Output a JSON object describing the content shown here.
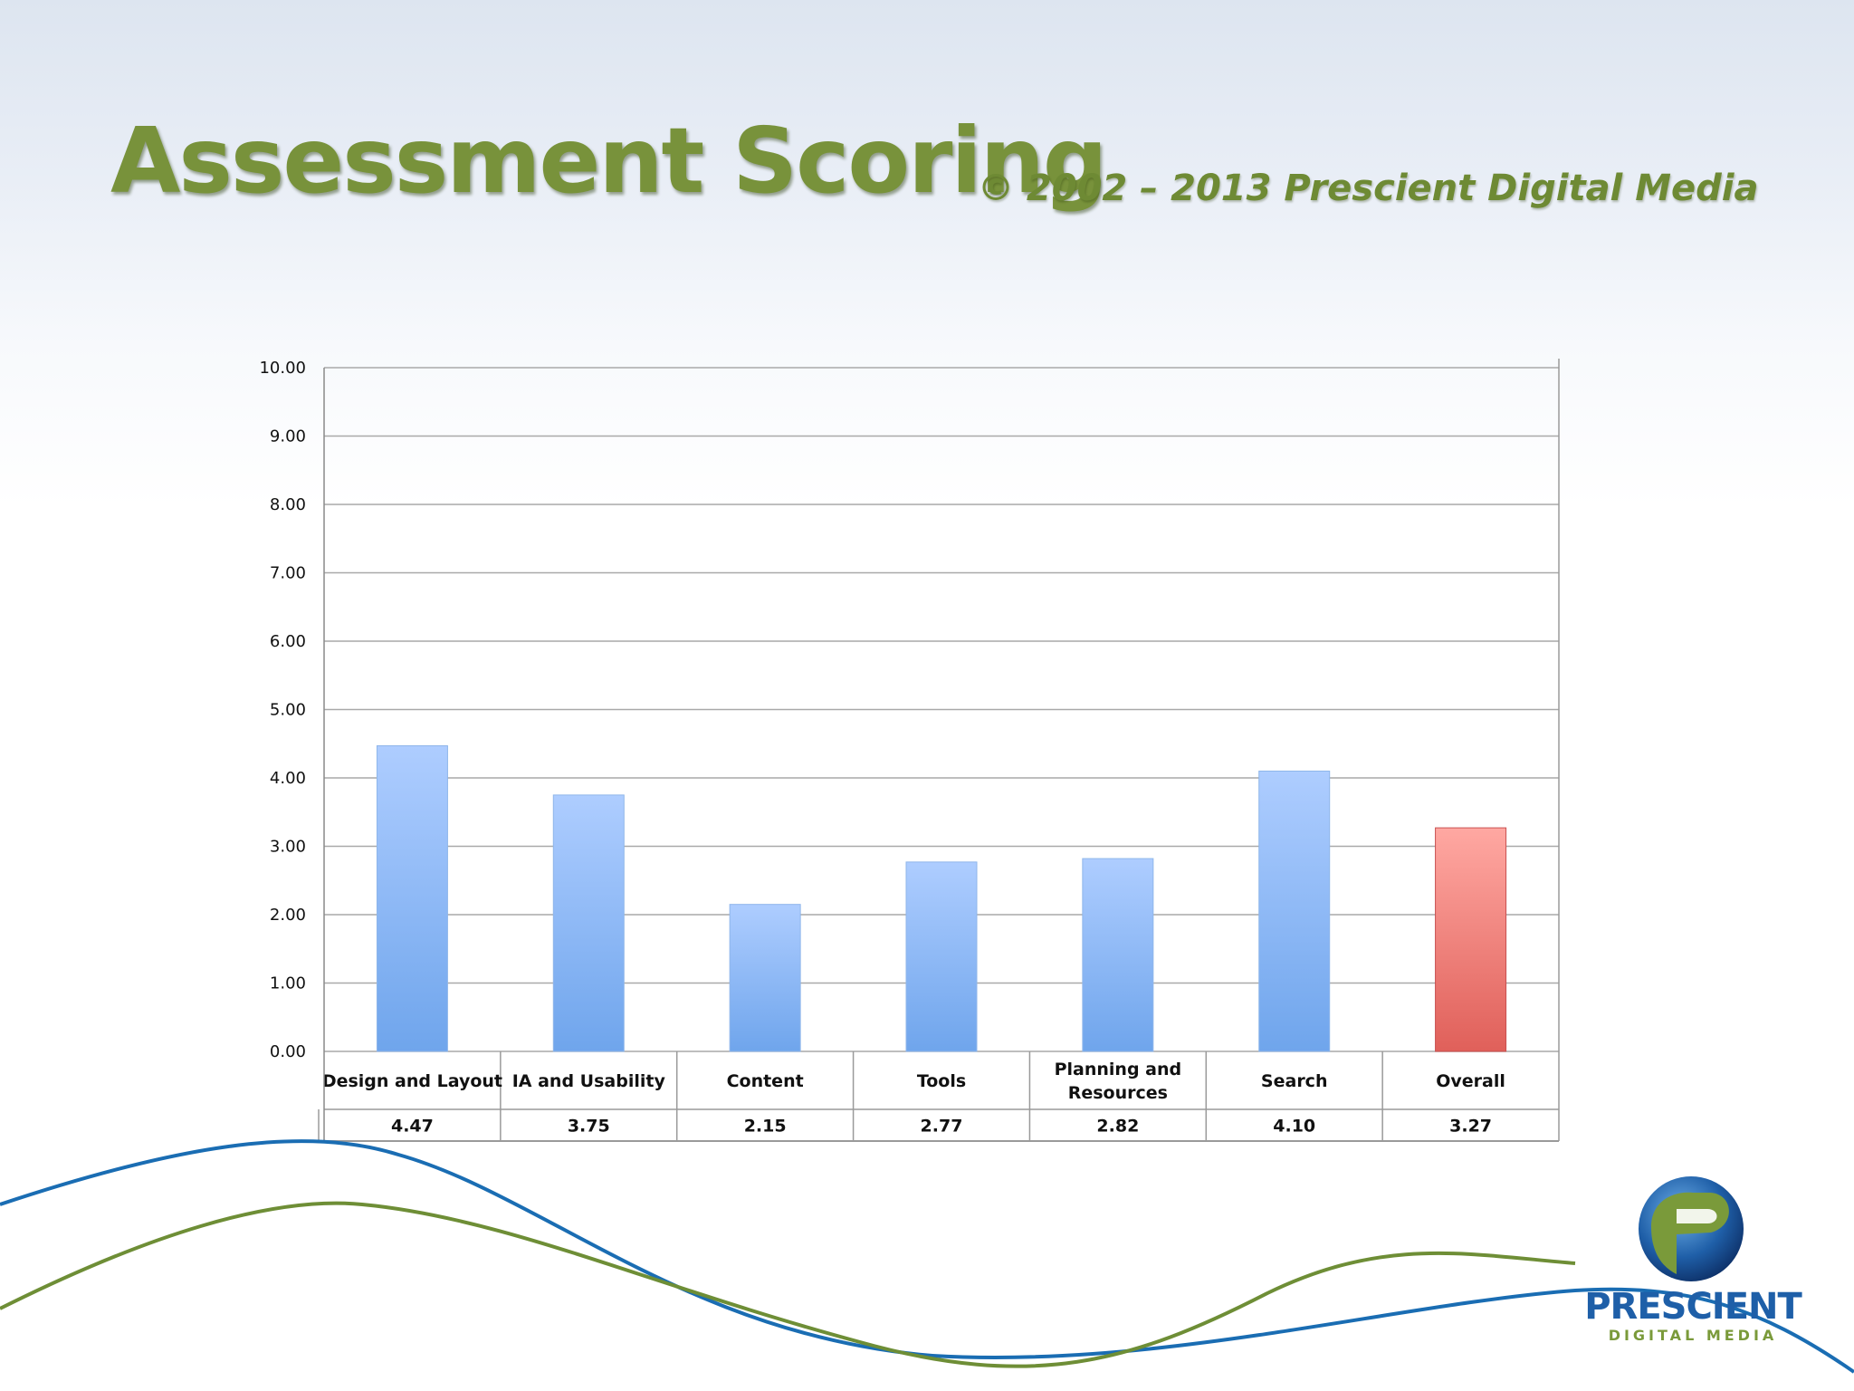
{
  "slide": {
    "title": "Assessment Scoring",
    "subtitle": "© 2002 – 2013 Prescient Digital Media"
  },
  "logo": {
    "name": "PRESCIENT",
    "tagline": "DIGITAL MEDIA"
  },
  "chart_data": {
    "type": "bar",
    "categories": [
      [
        "Design and Layout"
      ],
      [
        "IA and Usability"
      ],
      [
        "Content"
      ],
      [
        "Tools"
      ],
      [
        "Planning and",
        "Resources"
      ],
      [
        "Search"
      ],
      [
        "Overall"
      ]
    ],
    "values": [
      4.47,
      3.75,
      2.15,
      2.77,
      2.82,
      4.1,
      3.27
    ],
    "value_labels": [
      "4.47",
      "3.75",
      "2.15",
      "2.77",
      "2.82",
      "4.10",
      "3.27"
    ],
    "ylim": [
      0,
      10
    ],
    "y_ticks": [
      "0.00",
      "1.00",
      "2.00",
      "3.00",
      "4.00",
      "5.00",
      "6.00",
      "7.00",
      "8.00",
      "9.00",
      "10.00"
    ],
    "grid": true,
    "data_table": true,
    "colors": {
      "bar": "#6fa5ec",
      "bar_light": "#aecdff",
      "highlight_bar": "#e0605a",
      "highlight_bar_light": "#ffa8a2",
      "grid": "#a9a9a9"
    },
    "highlight_index": 6
  }
}
